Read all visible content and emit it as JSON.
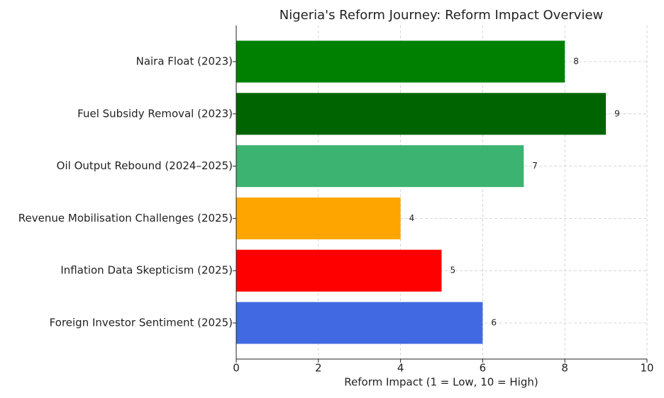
{
  "chart_data": {
    "type": "barh",
    "title": "Nigeria's Reform Journey: Reform Impact Overview",
    "xlabel": "Reform Impact (1 = Low, 10 = High)",
    "categories": [
      "Naira Float (2023)",
      "Fuel Subsidy Removal (2023)",
      "Oil Output Rebound (2024–2025)",
      "Revenue Mobilisation Challenges (2025)",
      "Inflation Data Skepticism (2025)",
      "Foreign Investor Sentiment (2025)"
    ],
    "values": [
      8,
      9,
      7,
      4,
      5,
      6
    ],
    "colors": [
      "#008000",
      "#006400",
      "#3cb371",
      "#ffa500",
      "#ff0000",
      "#4169e1"
    ],
    "xlim": [
      0,
      10
    ],
    "xticks": [
      0,
      2,
      4,
      6,
      8,
      10
    ],
    "grid": true
  }
}
